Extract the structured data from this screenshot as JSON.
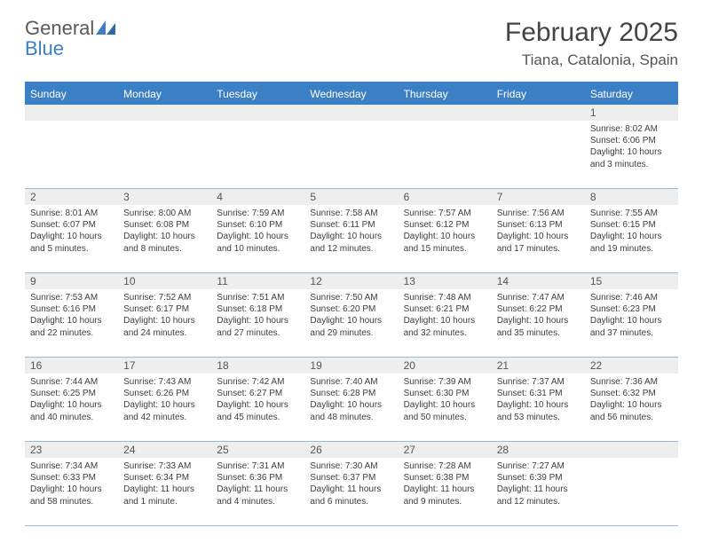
{
  "logo": {
    "line1": "General",
    "line2": "Blue"
  },
  "title": "February 2025",
  "location": "Tiana, Catalonia, Spain",
  "header_bg": "#3b7fc4",
  "daynum_bg": "#eeeeee",
  "border_color": "#9cb9d6",
  "days": [
    "Sunday",
    "Monday",
    "Tuesday",
    "Wednesday",
    "Thursday",
    "Friday",
    "Saturday"
  ],
  "weeks": [
    {
      "nums": [
        "",
        "",
        "",
        "",
        "",
        "",
        "1"
      ],
      "cells": [
        null,
        null,
        null,
        null,
        null,
        null,
        {
          "sr": "Sunrise: 8:02 AM",
          "ss": "Sunset: 6:06 PM",
          "dl": "Daylight: 10 hours and 3 minutes."
        }
      ]
    },
    {
      "nums": [
        "2",
        "3",
        "4",
        "5",
        "6",
        "7",
        "8"
      ],
      "cells": [
        {
          "sr": "Sunrise: 8:01 AM",
          "ss": "Sunset: 6:07 PM",
          "dl": "Daylight: 10 hours and 5 minutes."
        },
        {
          "sr": "Sunrise: 8:00 AM",
          "ss": "Sunset: 6:08 PM",
          "dl": "Daylight: 10 hours and 8 minutes."
        },
        {
          "sr": "Sunrise: 7:59 AM",
          "ss": "Sunset: 6:10 PM",
          "dl": "Daylight: 10 hours and 10 minutes."
        },
        {
          "sr": "Sunrise: 7:58 AM",
          "ss": "Sunset: 6:11 PM",
          "dl": "Daylight: 10 hours and 12 minutes."
        },
        {
          "sr": "Sunrise: 7:57 AM",
          "ss": "Sunset: 6:12 PM",
          "dl": "Daylight: 10 hours and 15 minutes."
        },
        {
          "sr": "Sunrise: 7:56 AM",
          "ss": "Sunset: 6:13 PM",
          "dl": "Daylight: 10 hours and 17 minutes."
        },
        {
          "sr": "Sunrise: 7:55 AM",
          "ss": "Sunset: 6:15 PM",
          "dl": "Daylight: 10 hours and 19 minutes."
        }
      ]
    },
    {
      "nums": [
        "9",
        "10",
        "11",
        "12",
        "13",
        "14",
        "15"
      ],
      "cells": [
        {
          "sr": "Sunrise: 7:53 AM",
          "ss": "Sunset: 6:16 PM",
          "dl": "Daylight: 10 hours and 22 minutes."
        },
        {
          "sr": "Sunrise: 7:52 AM",
          "ss": "Sunset: 6:17 PM",
          "dl": "Daylight: 10 hours and 24 minutes."
        },
        {
          "sr": "Sunrise: 7:51 AM",
          "ss": "Sunset: 6:18 PM",
          "dl": "Daylight: 10 hours and 27 minutes."
        },
        {
          "sr": "Sunrise: 7:50 AM",
          "ss": "Sunset: 6:20 PM",
          "dl": "Daylight: 10 hours and 29 minutes."
        },
        {
          "sr": "Sunrise: 7:48 AM",
          "ss": "Sunset: 6:21 PM",
          "dl": "Daylight: 10 hours and 32 minutes."
        },
        {
          "sr": "Sunrise: 7:47 AM",
          "ss": "Sunset: 6:22 PM",
          "dl": "Daylight: 10 hours and 35 minutes."
        },
        {
          "sr": "Sunrise: 7:46 AM",
          "ss": "Sunset: 6:23 PM",
          "dl": "Daylight: 10 hours and 37 minutes."
        }
      ]
    },
    {
      "nums": [
        "16",
        "17",
        "18",
        "19",
        "20",
        "21",
        "22"
      ],
      "cells": [
        {
          "sr": "Sunrise: 7:44 AM",
          "ss": "Sunset: 6:25 PM",
          "dl": "Daylight: 10 hours and 40 minutes."
        },
        {
          "sr": "Sunrise: 7:43 AM",
          "ss": "Sunset: 6:26 PM",
          "dl": "Daylight: 10 hours and 42 minutes."
        },
        {
          "sr": "Sunrise: 7:42 AM",
          "ss": "Sunset: 6:27 PM",
          "dl": "Daylight: 10 hours and 45 minutes."
        },
        {
          "sr": "Sunrise: 7:40 AM",
          "ss": "Sunset: 6:28 PM",
          "dl": "Daylight: 10 hours and 48 minutes."
        },
        {
          "sr": "Sunrise: 7:39 AM",
          "ss": "Sunset: 6:30 PM",
          "dl": "Daylight: 10 hours and 50 minutes."
        },
        {
          "sr": "Sunrise: 7:37 AM",
          "ss": "Sunset: 6:31 PM",
          "dl": "Daylight: 10 hours and 53 minutes."
        },
        {
          "sr": "Sunrise: 7:36 AM",
          "ss": "Sunset: 6:32 PM",
          "dl": "Daylight: 10 hours and 56 minutes."
        }
      ]
    },
    {
      "nums": [
        "23",
        "24",
        "25",
        "26",
        "27",
        "28",
        ""
      ],
      "cells": [
        {
          "sr": "Sunrise: 7:34 AM",
          "ss": "Sunset: 6:33 PM",
          "dl": "Daylight: 10 hours and 58 minutes."
        },
        {
          "sr": "Sunrise: 7:33 AM",
          "ss": "Sunset: 6:34 PM",
          "dl": "Daylight: 11 hours and 1 minute."
        },
        {
          "sr": "Sunrise: 7:31 AM",
          "ss": "Sunset: 6:36 PM",
          "dl": "Daylight: 11 hours and 4 minutes."
        },
        {
          "sr": "Sunrise: 7:30 AM",
          "ss": "Sunset: 6:37 PM",
          "dl": "Daylight: 11 hours and 6 minutes."
        },
        {
          "sr": "Sunrise: 7:28 AM",
          "ss": "Sunset: 6:38 PM",
          "dl": "Daylight: 11 hours and 9 minutes."
        },
        {
          "sr": "Sunrise: 7:27 AM",
          "ss": "Sunset: 6:39 PM",
          "dl": "Daylight: 11 hours and 12 minutes."
        },
        null
      ]
    }
  ]
}
